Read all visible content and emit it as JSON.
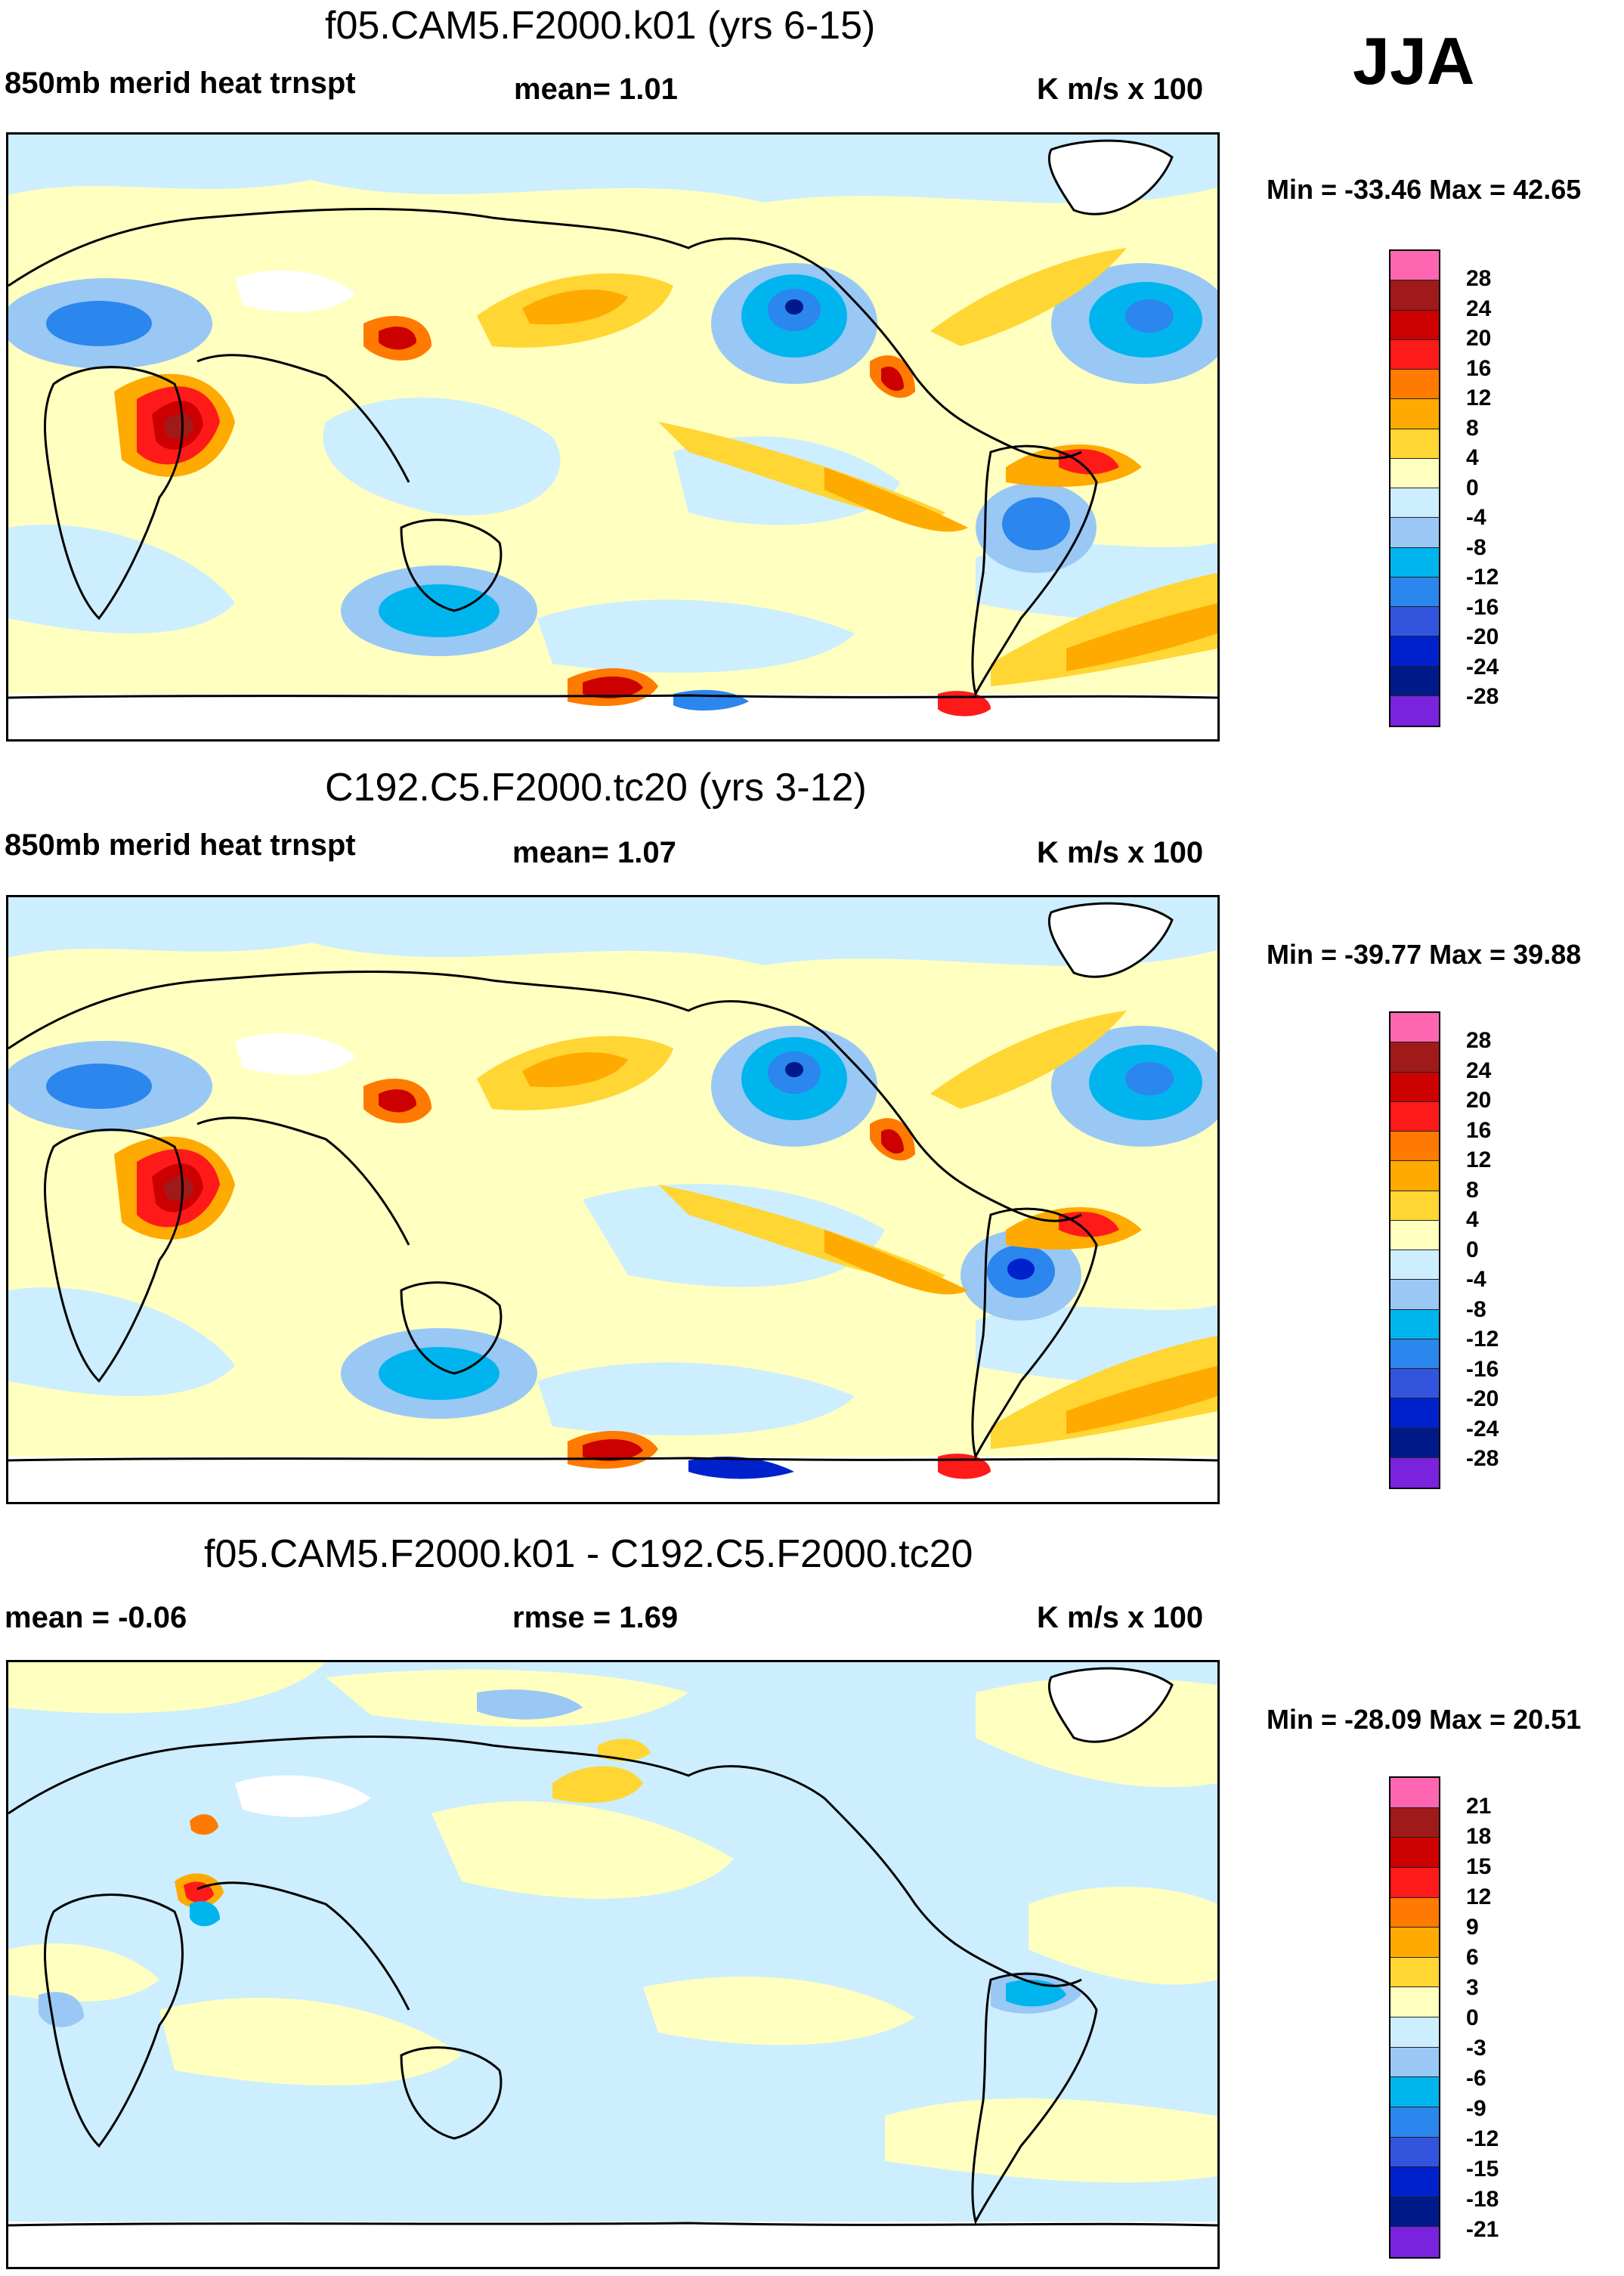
{
  "season": "JJA",
  "panels": [
    {
      "id": "p1",
      "title": "f05.CAM5.F2000.k01 (yrs 6-15)",
      "left_label": "850mb merid heat trnspt",
      "mid_label": "mean=   1.01",
      "units": "K m/s x 100",
      "minmax": "Min = -33.46 Max =  42.65",
      "levels": [
        "28",
        "24",
        "20",
        "16",
        "12",
        "8",
        "4",
        "0",
        "-4",
        "-8",
        "-12",
        "-16",
        "-20",
        "-24",
        "-28"
      ]
    },
    {
      "id": "p2",
      "title": "C192.C5.F2000.tc20 (yrs 3-12)",
      "left_label": "850mb merid heat trnspt",
      "mid_label": "mean=   1.07",
      "units": "K m/s x 100",
      "minmax": "Min = -39.77 Max =  39.88",
      "levels": [
        "28",
        "24",
        "20",
        "16",
        "12",
        "8",
        "4",
        "0",
        "-4",
        "-8",
        "-12",
        "-16",
        "-20",
        "-24",
        "-28"
      ]
    },
    {
      "id": "p3",
      "title": "f05.CAM5.F2000.k01 - C192.C5.F2000.tc20",
      "left_label": "mean =  -0.06",
      "mid_label": "rmse =   1.69",
      "units": "K m/s x 100",
      "minmax": "Min = -28.09 Max =  20.51",
      "levels": [
        "21",
        "18",
        "15",
        "12",
        "9",
        "6",
        "3",
        "0",
        "-3",
        "-6",
        "-9",
        "-12",
        "-15",
        "-18",
        "-21"
      ]
    }
  ],
  "palette": [
    "#ff66b2",
    "#a01a1a",
    "#cc0000",
    "#ff1a1a",
    "#ff7a00",
    "#ffaa00",
    "#ffd633",
    "#ffffc0",
    "#cceeff",
    "#99c8f5",
    "#00b5ee",
    "#2b86ee",
    "#3355dd",
    "#0022cc",
    "#001a8a",
    "#7a22dd"
  ]
}
